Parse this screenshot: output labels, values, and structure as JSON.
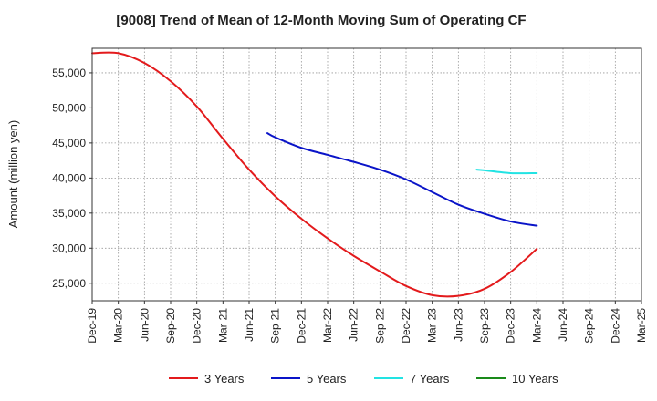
{
  "chart_data": {
    "type": "line",
    "title": "[9008]  Trend of Mean of 12-Month Moving Sum of Operating CF",
    "xlabel": "",
    "ylabel": "Amount (million yen)",
    "ylim": [
      22500,
      58500
    ],
    "yticks": [
      25000,
      30000,
      35000,
      40000,
      45000,
      50000,
      55000
    ],
    "ytick_labels": [
      "25,000",
      "30,000",
      "35,000",
      "40,000",
      "45,000",
      "50,000",
      "55,000"
    ],
    "categories": [
      "Dec-19",
      "Mar-20",
      "Jun-20",
      "Sep-20",
      "Dec-20",
      "Mar-21",
      "Jun-21",
      "Sep-21",
      "Dec-21",
      "Mar-22",
      "Jun-22",
      "Sep-22",
      "Dec-22",
      "Mar-23",
      "Jun-23",
      "Sep-23",
      "Dec-23",
      "Mar-24",
      "Jun-24",
      "Sep-24",
      "Dec-24",
      "Mar-25"
    ],
    "grid": true,
    "legend_position": "bottom",
    "series": [
      {
        "name": "3 Years",
        "color": "#e31a1c",
        "points": [
          [
            0,
            57800
          ],
          [
            1,
            57800
          ],
          [
            2,
            56400
          ],
          [
            3,
            53800
          ],
          [
            4,
            50200
          ],
          [
            5,
            45600
          ],
          [
            6,
            41200
          ],
          [
            7,
            37400
          ],
          [
            8,
            34200
          ],
          [
            9,
            31400
          ],
          [
            10,
            28900
          ],
          [
            11,
            26700
          ],
          [
            12,
            24600
          ],
          [
            13,
            23300
          ],
          [
            14,
            23200
          ],
          [
            15,
            24200
          ],
          [
            16,
            26600
          ],
          [
            17,
            29900
          ]
        ]
      },
      {
        "name": "5 Years",
        "color": "#0a14c8",
        "points": [
          [
            6.7,
            46400
          ],
          [
            7,
            45800
          ],
          [
            8,
            44300
          ],
          [
            9,
            43300
          ],
          [
            10,
            42300
          ],
          [
            11,
            41200
          ],
          [
            12,
            39800
          ],
          [
            13,
            38000
          ],
          [
            14,
            36200
          ],
          [
            15,
            34900
          ],
          [
            16,
            33800
          ],
          [
            17,
            33200
          ]
        ]
      },
      {
        "name": "7 Years",
        "color": "#22e3e3",
        "points": [
          [
            14.7,
            41200
          ],
          [
            15,
            41100
          ],
          [
            16,
            40700
          ],
          [
            17,
            40700
          ]
        ]
      },
      {
        "name": "10 Years",
        "color": "#1a8a1a",
        "points": []
      }
    ]
  }
}
